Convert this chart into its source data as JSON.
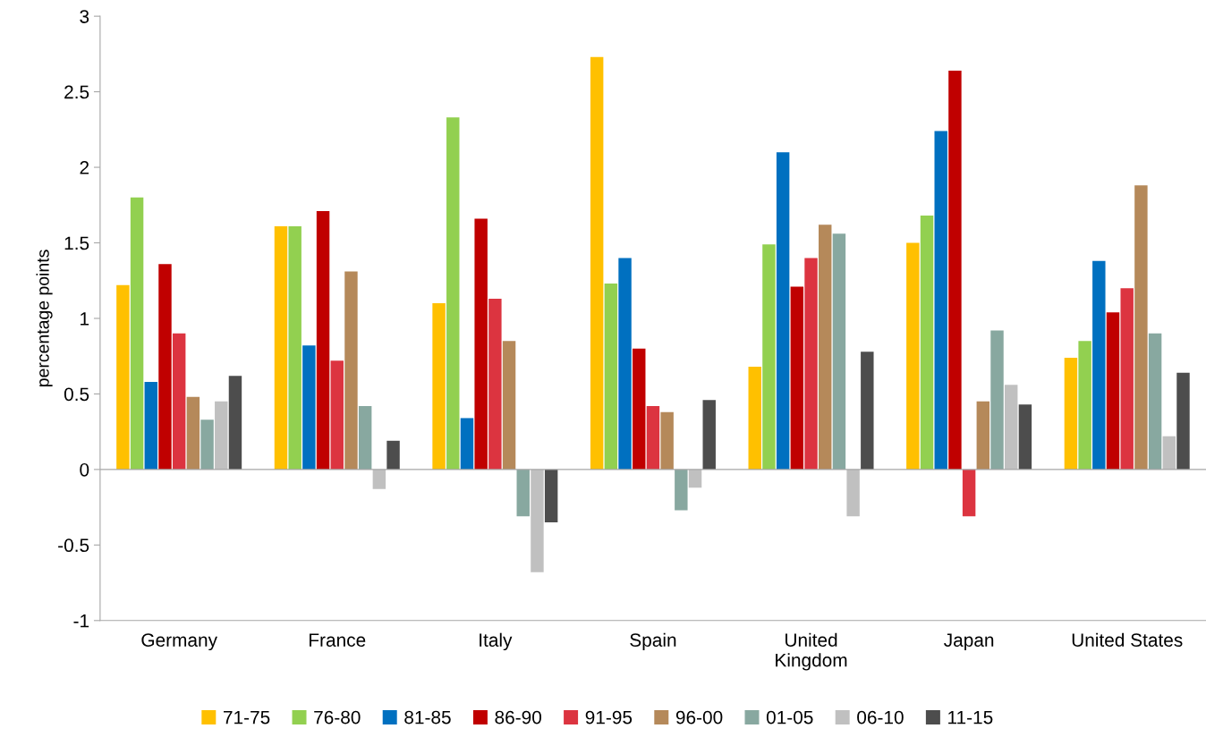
{
  "chart_data": {
    "type": "bar",
    "ylabel": "percentage points",
    "categories": [
      "Germany",
      "France",
      "Italy",
      "Spain",
      "United\nKingdom",
      "Japan",
      "United States"
    ],
    "series": [
      {
        "name": "71-75",
        "color": "#ffc000",
        "values": [
          1.22,
          1.61,
          1.1,
          2.73,
          0.68,
          1.5,
          0.74
        ]
      },
      {
        "name": "76-80",
        "color": "#92d050",
        "values": [
          1.8,
          1.61,
          2.33,
          1.23,
          1.49,
          1.68,
          0.85
        ]
      },
      {
        "name": "81-85",
        "color": "#0070c0",
        "values": [
          0.58,
          0.82,
          0.34,
          1.4,
          2.1,
          2.24,
          1.38
        ]
      },
      {
        "name": "86-90",
        "color": "#c00000",
        "values": [
          1.36,
          1.71,
          1.66,
          0.8,
          1.21,
          2.64,
          1.04
        ]
      },
      {
        "name": "91-95",
        "color": "#dc3440",
        "values": [
          0.9,
          0.72,
          1.13,
          0.42,
          1.4,
          -0.31,
          1.2
        ]
      },
      {
        "name": "96-00",
        "color": "#b5895a",
        "values": [
          0.48,
          1.31,
          0.85,
          0.38,
          1.62,
          0.45,
          1.88
        ]
      },
      {
        "name": "01-05",
        "color": "#88a8a0",
        "values": [
          0.33,
          0.42,
          -0.31,
          -0.27,
          1.56,
          0.92,
          0.9
        ]
      },
      {
        "name": "06-10",
        "color": "#c0c0c0",
        "values": [
          0.45,
          -0.13,
          -0.68,
          -0.12,
          -0.31,
          0.56,
          0.22
        ]
      },
      {
        "name": "11-15",
        "color": "#4d4d4d",
        "values": [
          0.62,
          0.19,
          -0.35,
          0.46,
          0.78,
          0.43,
          0.64
        ]
      }
    ],
    "ylim": [
      -1,
      3
    ],
    "yticks": [
      -1,
      -0.5,
      0,
      0.5,
      1,
      1.5,
      2,
      2.5,
      3
    ],
    "ref_lines": [
      {
        "axis": "y",
        "value": 0,
        "color": "#a6a6a6"
      }
    ],
    "grid": false,
    "legend": "bottom"
  }
}
